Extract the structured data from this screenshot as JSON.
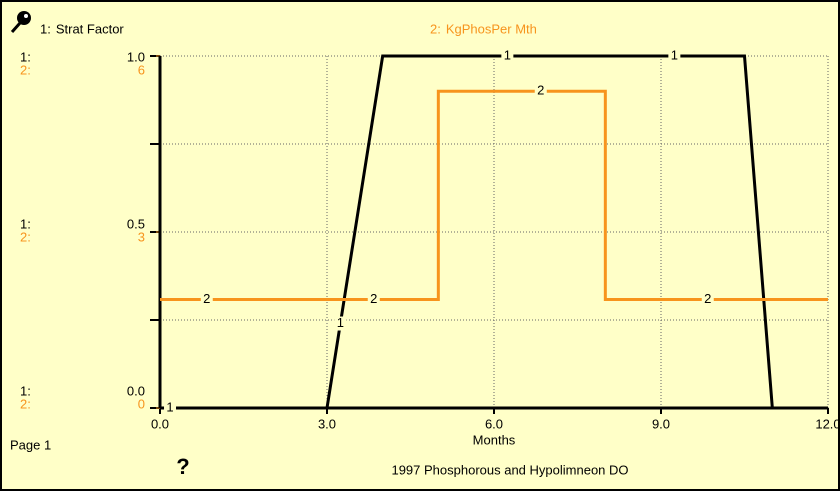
{
  "chart_data": {
    "type": "line",
    "title": "1997 Phosphorous and Hypolimneon DO",
    "x_label": "Months",
    "page_label": "Page 1",
    "help_icon": "?",
    "xlim": [
      0,
      12
    ],
    "xticks": [
      {
        "value": 0,
        "label": "0.0"
      },
      {
        "value": 3,
        "label": "3.0"
      },
      {
        "value": 6,
        "label": "6.0"
      },
      {
        "value": 9,
        "label": "9.0"
      },
      {
        "value": 12,
        "label": "12.0"
      }
    ],
    "ylim": [
      0,
      1
    ],
    "yticks": [
      {
        "value": 0,
        "label": "0.0"
      },
      {
        "value": 0.5,
        "label": "0.5"
      },
      {
        "value": 1,
        "label": "1.0"
      }
    ],
    "y_minor_ticks": [
      0.25,
      0.75
    ],
    "y2lim": [
      0,
      6
    ],
    "y2ticks": [
      0,
      3,
      6
    ],
    "grid": true,
    "series": [
      {
        "key": "1:",
        "marker": "1",
        "name": "Strat Factor",
        "color": "#000000",
        "x": [
          0,
          3,
          4,
          10.5,
          11,
          12
        ],
        "values": [
          0,
          0,
          1,
          1,
          0,
          0
        ]
      },
      {
        "key": "2:",
        "marker": "2",
        "name": "KgPhosPer Mth",
        "color": "#f7941d",
        "axis": "y2",
        "x": [
          0,
          5,
          5,
          8,
          8,
          12
        ],
        "values": [
          1.85,
          1.85,
          5.4,
          5.4,
          1.85,
          1.85
        ]
      }
    ]
  }
}
